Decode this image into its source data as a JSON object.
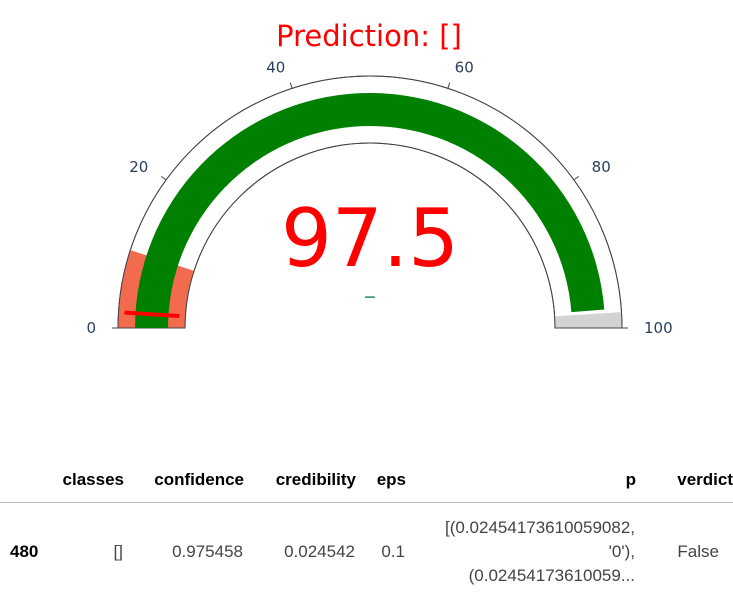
{
  "gauge": {
    "title": "Prediction: []",
    "value_text": "97.5",
    "value": 97.5,
    "delta_text": "–",
    "axis_min": 0,
    "axis_max": 100,
    "ticks": [
      "0",
      "20",
      "40",
      "60",
      "80",
      "100"
    ],
    "bar_fraction": 0.975,
    "threshold_value": 2,
    "steps": [
      {
        "range": [
          0,
          10
        ],
        "color": "#f26b4f"
      },
      {
        "range": [
          98,
          100
        ],
        "color": "#d3d3d3"
      }
    ],
    "colors": {
      "title": "#ff0000",
      "value": "#ff0000",
      "bar": "#008000",
      "threshold": "#ff0000",
      "delta": "#3d9970",
      "axis": "#2a3f5f"
    }
  },
  "table": {
    "headers": [
      "",
      "classes",
      "confidence",
      "credibility",
      "eps",
      "p",
      "verdict"
    ],
    "rows": [
      {
        "index": "480",
        "classes": "[]",
        "confidence": "0.975458",
        "credibility": "0.024542",
        "eps": "0.1",
        "p_line1": "[(0.02454173610059082,",
        "p_line2": "'0'),",
        "p_line3": "(0.02454173610059...",
        "verdict": "False"
      }
    ]
  }
}
